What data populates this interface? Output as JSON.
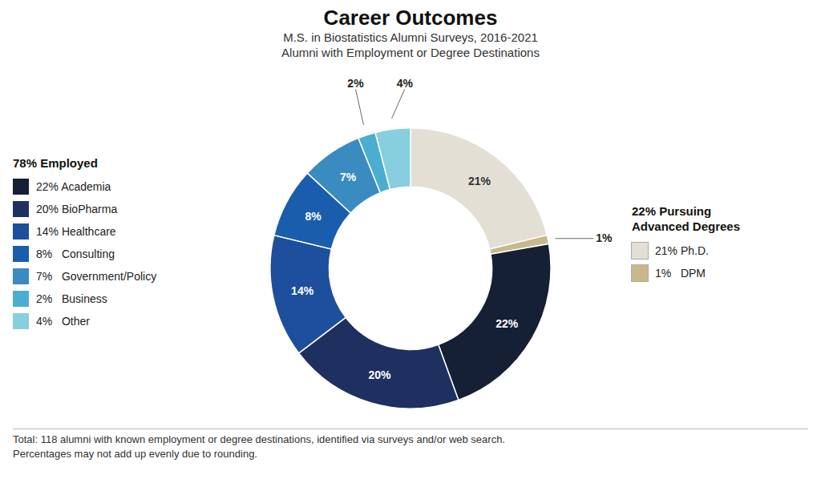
{
  "chart_data": {
    "type": "pie",
    "title": "Career Outcomes",
    "subtitle": [
      "M.S. in Biostatistics Alumni Surveys, 2016-2021",
      "Alumni with Employment or Degree Destinations"
    ],
    "caption": [
      "Total: 118 alumni with known employment or degree destinations, identified via surveys and/or web search.",
      "Percentages may not add up evenly due to rounding."
    ],
    "categories": [
      "21% Ph.D.",
      "1%   DPM",
      "22% Academia",
      "20% BioPharma",
      "14% Healthcare",
      "8%   Consulting",
      "7%   Government/Policy",
      "2%   Business",
      "4%   Other"
    ],
    "values": [
      21,
      1,
      22,
      20,
      14,
      8,
      7,
      2,
      4
    ],
    "value_labels": [
      "21%",
      "1%",
      "22%",
      "20%",
      "14%",
      "8%",
      "7%",
      "2%",
      "4%"
    ],
    "colors": [
      "#E4DFD5",
      "#C8B98A",
      "#152035",
      "#1E3060",
      "#1E4F9C",
      "#1A5DAD",
      "#3A8BBF",
      "#4BAED0",
      "#87CEDF"
    ],
    "data_labels": true,
    "legend_groups": [
      {
        "title": "78% Employed",
        "items": [
          "22% Academia",
          "20% BioPharma",
          "14% Healthcare",
          "8%   Consulting",
          "7%   Government/Policy",
          "2%   Business",
          "4%   Other"
        ]
      },
      {
        "title": "22% Pursuing\nAdvanced Degrees",
        "items": [
          "21% Ph.D.",
          "1%   DPM"
        ]
      }
    ]
  }
}
